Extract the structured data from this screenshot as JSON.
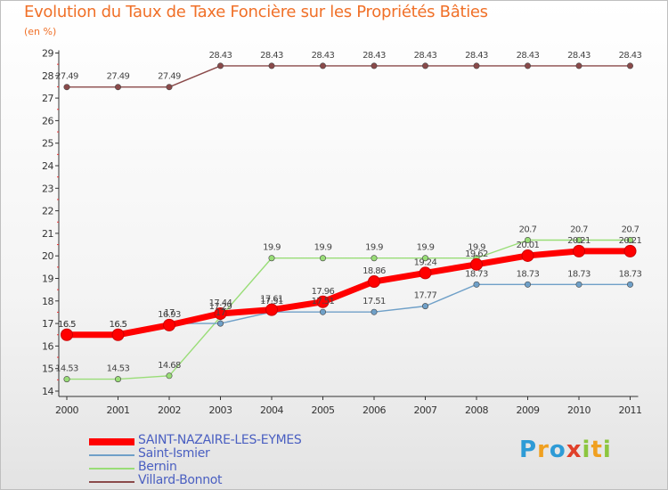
{
  "title": "Evolution du Taux de Taxe Foncière sur les Propriétés Bâties",
  "unit_label": "(en %)",
  "logo": {
    "text": "Proxiti",
    "letters": [
      {
        "ch": "P",
        "color": "#2e9bd6"
      },
      {
        "ch": "r",
        "color": "#f0a020"
      },
      {
        "ch": "o",
        "color": "#2e9bd6"
      },
      {
        "ch": "x",
        "color": "#e0402a"
      },
      {
        "ch": "i",
        "color": "#8cc63f"
      },
      {
        "ch": "t",
        "color": "#f0a020"
      },
      {
        "ch": "i",
        "color": "#8cc63f"
      }
    ]
  },
  "chart_data": {
    "type": "line",
    "title": "Evolution du Taux de Taxe Foncière sur les Propriétés Bâties",
    "ylabel": "(en %)",
    "xlabel": "",
    "x": [
      "2000",
      "2001",
      "2002",
      "2003",
      "2004",
      "2005",
      "2006",
      "2007",
      "2008",
      "2009",
      "2010",
      "2011"
    ],
    "ylim": [
      14,
      29
    ],
    "yticks": [
      14,
      15,
      16,
      17,
      18,
      19,
      20,
      21,
      22,
      23,
      24,
      25,
      26,
      27,
      28,
      29
    ],
    "grid": false,
    "legend_position": "bottom-left",
    "series": [
      {
        "name": "SAINT-NAZAIRE-LES-EYMES",
        "color": "#ff0000",
        "thick": true,
        "values": [
          16.5,
          16.5,
          16.93,
          17.44,
          17.61,
          17.96,
          18.86,
          19.24,
          19.62,
          20.01,
          20.21,
          20.21
        ],
        "labels": [
          "16.5",
          "16.5",
          "16.93",
          "17.44",
          "17.61",
          "17.96",
          "18.86",
          "19.24",
          "19.62",
          "20.01",
          "20.21",
          "20.21"
        ]
      },
      {
        "name": "Saint-Ismier",
        "color": "#6fa0c8",
        "thick": false,
        "values": [
          16.5,
          16.5,
          17.0,
          17.0,
          17.51,
          17.51,
          17.51,
          17.77,
          18.73,
          18.73,
          18.73,
          18.73
        ],
        "labels": [
          "16.5",
          "16.5",
          "17",
          "17",
          "17.51",
          "17.51",
          "17.51",
          "17.77",
          "18.73",
          "18.73",
          "18.73",
          "18.73"
        ]
      },
      {
        "name": "Bernin",
        "color": "#99dd77",
        "thick": false,
        "values": [
          14.53,
          14.53,
          14.68,
          17.29,
          19.9,
          19.9,
          19.9,
          19.9,
          19.9,
          20.7,
          20.7,
          20.7
        ],
        "labels": [
          "14.53",
          "14.53",
          "14.68",
          "17.29",
          "19.9",
          "19.9",
          "19.9",
          "19.9",
          "19.9",
          "20.7",
          "20.7",
          "20.7"
        ]
      },
      {
        "name": "Villard-Bonnot",
        "color": "#8a4a4a",
        "thick": false,
        "values": [
          27.49,
          27.49,
          27.49,
          28.43,
          28.43,
          28.43,
          28.43,
          28.43,
          28.43,
          28.43,
          28.43,
          28.43
        ],
        "labels": [
          "27.49",
          "27.49",
          "27.49",
          "28.43",
          "28.43",
          "28.43",
          "28.43",
          "28.43",
          "28.43",
          "28.43",
          "28.43",
          "28.43"
        ]
      }
    ]
  }
}
